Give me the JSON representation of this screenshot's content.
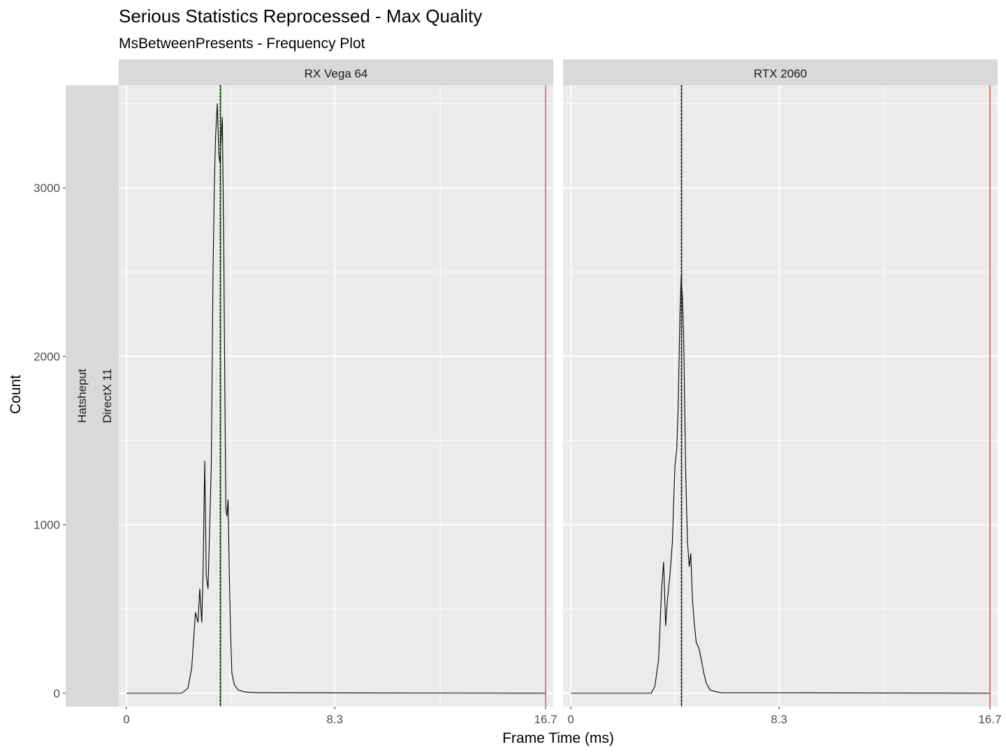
{
  "chart_data": {
    "type": "line",
    "title": "Serious Statistics Reprocessed - Max Quality",
    "subtitle": "MsBetweenPresents - Frequency Plot",
    "xlabel": "Frame Time (ms)",
    "ylabel": "Count",
    "row_strips": [
      "Hatsheput",
      "DirectX 11"
    ],
    "xlim": [
      0,
      16.7
    ],
    "ylim": [
      0,
      3500
    ],
    "x_ticks": [
      0,
      8.3,
      16.7
    ],
    "x_tick_labels": [
      "0",
      "8.3",
      "16.7"
    ],
    "y_ticks": [
      0,
      1000,
      2000,
      3000
    ],
    "y_tick_labels": [
      "0",
      "1000",
      "2000",
      "3000"
    ],
    "reference_line": {
      "x": 16.7,
      "color": "#cc2222"
    },
    "colors": {
      "curve": "#000000",
      "mean_line": "#006400",
      "median_line": "#000000",
      "reference": "#cc2222",
      "panel_bg": "#ebebeb",
      "strip_bg": "#d9d9d9",
      "grid": "#ffffff"
    },
    "panels": [
      {
        "name": "RX Vega 64",
        "mean_line_x": 3.75,
        "median_line_x": 3.73,
        "x": [
          0,
          2.2,
          2.45,
          2.6,
          2.75,
          2.85,
          2.92,
          3.0,
          3.05,
          3.12,
          3.18,
          3.25,
          3.3,
          3.38,
          3.45,
          3.5,
          3.55,
          3.62,
          3.68,
          3.72,
          3.76,
          3.82,
          3.88,
          3.92,
          3.96,
          4.0,
          4.05,
          4.1,
          4.15,
          4.2,
          4.3,
          4.45,
          4.7,
          5.2,
          16.7
        ],
        "y": [
          0,
          0,
          30,
          150,
          480,
          420,
          620,
          420,
          700,
          1380,
          700,
          620,
          900,
          1350,
          2500,
          3000,
          3300,
          3500,
          3200,
          3150,
          3250,
          3420,
          2600,
          1800,
          1100,
          1050,
          1150,
          700,
          350,
          120,
          50,
          20,
          8,
          3,
          0
        ]
      },
      {
        "name": "RTX 2060",
        "mean_line_x": 4.42,
        "median_line_x": 4.4,
        "x": [
          0,
          3.2,
          3.35,
          3.5,
          3.62,
          3.7,
          3.78,
          3.85,
          3.95,
          4.05,
          4.15,
          4.22,
          4.28,
          4.35,
          4.4,
          4.45,
          4.5,
          4.58,
          4.65,
          4.72,
          4.78,
          4.85,
          4.92,
          5.0,
          5.1,
          5.2,
          5.3,
          5.4,
          5.55,
          5.75,
          6.0,
          16.7
        ],
        "y": [
          0,
          0,
          40,
          200,
          620,
          780,
          400,
          550,
          700,
          900,
          1350,
          1450,
          1700,
          2250,
          2480,
          2350,
          2100,
          1300,
          900,
          750,
          830,
          550,
          420,
          300,
          270,
          200,
          120,
          60,
          20,
          10,
          3,
          0
        ]
      }
    ]
  }
}
